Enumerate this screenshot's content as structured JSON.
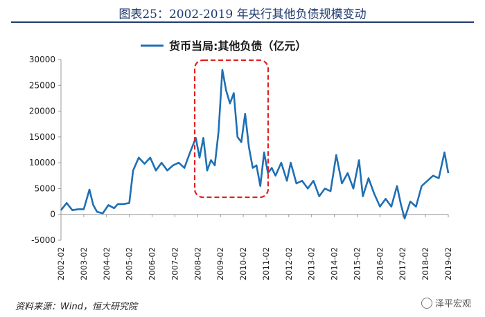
{
  "figure": {
    "title": "图表25：2002-2019 年央行其他负债规模变动",
    "source": "资料来源：Wind，恒大研究院",
    "watermark": "泽平宏观"
  },
  "chart_data": {
    "type": "line",
    "legend": {
      "position": "top-center"
    },
    "grid": false,
    "ylim": [
      -5000,
      30000
    ],
    "yticks": [
      -5000,
      0,
      5000,
      10000,
      15000,
      20000,
      25000,
      30000
    ],
    "ytick_labels": [
      "-5000",
      "0",
      "5000",
      "10000",
      "15000",
      "20000",
      "25000",
      "30000"
    ],
    "xlim": [
      "2002-02",
      "2019-02"
    ],
    "xtick_labels": [
      "2002-02",
      "2003-02",
      "2004-02",
      "2005-02",
      "2006-02",
      "2007-02",
      "2008-02",
      "2009-02",
      "2010-02",
      "2011-02",
      "2012-02",
      "2013-02",
      "2014-02",
      "2015-02",
      "2016-02",
      "2017-02",
      "2018-02",
      "2019-02"
    ],
    "series": [
      {
        "name": "货币当局:其他负债（亿元）",
        "color": "#1f6fb4",
        "x": [
          "2002-02",
          "2002-05",
          "2002-08",
          "2002-11",
          "2003-02",
          "2003-05",
          "2003-07",
          "2003-09",
          "2003-12",
          "2004-03",
          "2004-06",
          "2004-08",
          "2004-11",
          "2005-02",
          "2005-04",
          "2005-07",
          "2005-10",
          "2006-01",
          "2006-04",
          "2006-07",
          "2006-10",
          "2007-01",
          "2007-04",
          "2007-07",
          "2007-10",
          "2008-01",
          "2008-03",
          "2008-05",
          "2008-07",
          "2008-09",
          "2008-11",
          "2009-01",
          "2009-03",
          "2009-05",
          "2009-07",
          "2009-09",
          "2009-11",
          "2010-01",
          "2010-03",
          "2010-05",
          "2010-07",
          "2010-09",
          "2010-11",
          "2011-01",
          "2011-03",
          "2011-05",
          "2011-07",
          "2011-10",
          "2012-01",
          "2012-03",
          "2012-06",
          "2012-09",
          "2012-12",
          "2013-03",
          "2013-06",
          "2013-09",
          "2013-12",
          "2014-03",
          "2014-06",
          "2014-09",
          "2014-12",
          "2015-03",
          "2015-05",
          "2015-08",
          "2015-11",
          "2016-02",
          "2016-05",
          "2016-08",
          "2016-11",
          "2017-01",
          "2017-03",
          "2017-06",
          "2017-09",
          "2017-12",
          "2018-03",
          "2018-06",
          "2018-09",
          "2018-12",
          "2019-02"
        ],
        "y": [
          800,
          2200,
          800,
          1000,
          1000,
          4800,
          1800,
          500,
          200,
          1800,
          1200,
          2000,
          2000,
          2200,
          8500,
          11000,
          9800,
          11000,
          8500,
          10000,
          8500,
          9500,
          10000,
          9000,
          12000,
          14800,
          11000,
          14800,
          8500,
          10500,
          9500,
          16000,
          28000,
          24000,
          21500,
          23500,
          15000,
          14000,
          19500,
          13000,
          9000,
          9500,
          5500,
          12000,
          8000,
          9000,
          7500,
          10000,
          6500,
          10000,
          6000,
          6500,
          5000,
          6500,
          3500,
          5000,
          4500,
          11500,
          6000,
          8000,
          5000,
          10500,
          3500,
          7000,
          4000,
          1500,
          3000,
          1500,
          5500,
          2000,
          -800,
          2500,
          1500,
          5500,
          6500,
          7500,
          7000,
          12000,
          8000
        ]
      }
    ]
  }
}
